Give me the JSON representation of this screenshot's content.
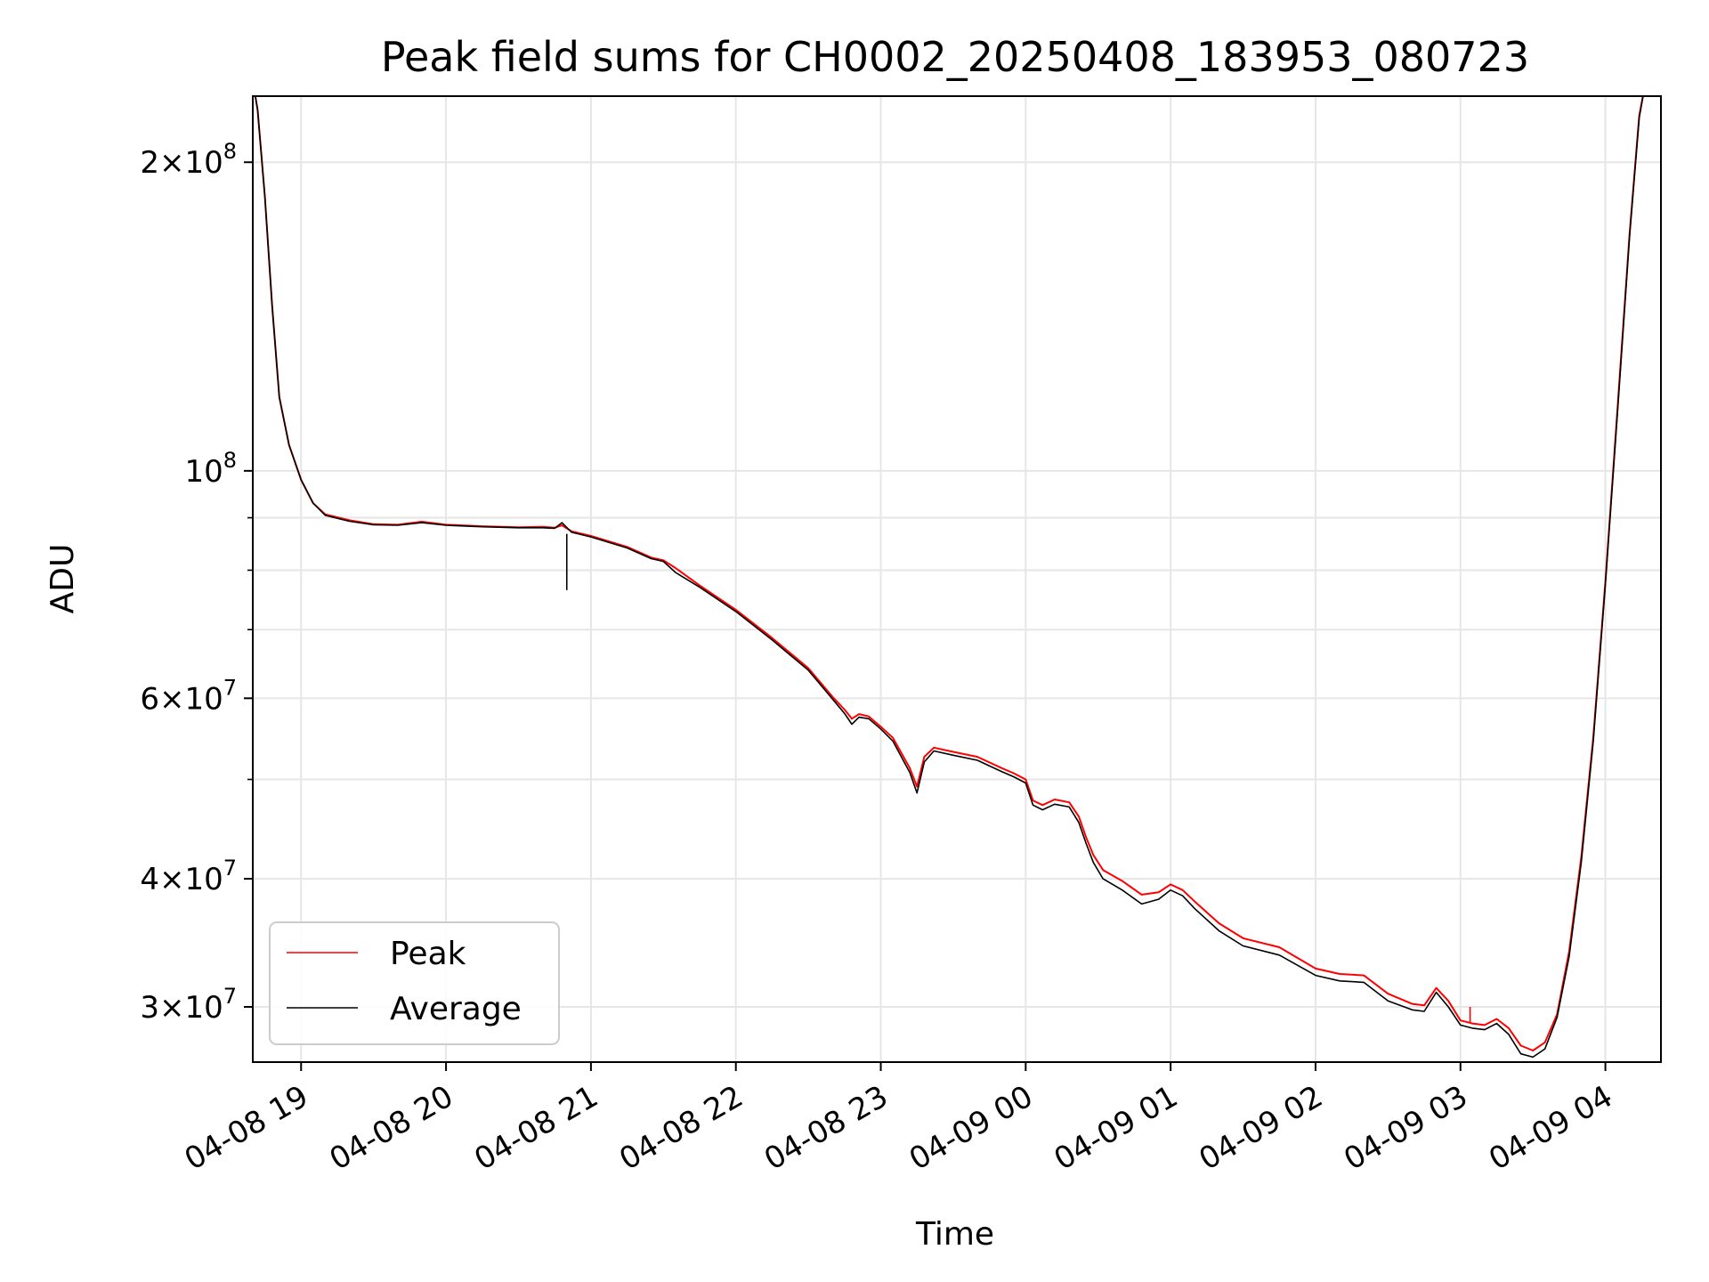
{
  "chart_data": {
    "type": "line",
    "title": "Peak field sums for CH0002_20250408_183953_080723",
    "xlabel": "Time",
    "ylabel": "ADU",
    "y_scale": "log",
    "grid": true,
    "legend_placement": "lower-left",
    "xlim": [
      "2025-04-08 18:40",
      "2025-04-09 04:23"
    ],
    "ylim": [
      26500000,
      232000000
    ],
    "x_ticks": [
      {
        "value": "2025-04-08 19:00",
        "label": "04-08 19"
      },
      {
        "value": "2025-04-08 20:00",
        "label": "04-08 20"
      },
      {
        "value": "2025-04-08 21:00",
        "label": "04-08 21"
      },
      {
        "value": "2025-04-08 22:00",
        "label": "04-08 22"
      },
      {
        "value": "2025-04-08 23:00",
        "label": "04-08 23"
      },
      {
        "value": "2025-04-09 00:00",
        "label": "04-09 00"
      },
      {
        "value": "2025-04-09 01:00",
        "label": "04-09 01"
      },
      {
        "value": "2025-04-09 02:00",
        "label": "04-09 02"
      },
      {
        "value": "2025-04-09 03:00",
        "label": "04-09 03"
      },
      {
        "value": "2025-04-09 04:00",
        "label": "04-09 04"
      }
    ],
    "y_major_ticks": [
      {
        "value": 30000000,
        "mant": "3",
        "exp": "7"
      },
      {
        "value": 40000000,
        "mant": "4",
        "exp": "7"
      },
      {
        "value": 60000000,
        "mant": "6",
        "exp": "7"
      },
      {
        "value": 100000000,
        "mant": "",
        "exp": "8"
      },
      {
        "value": 200000000,
        "mant": "2",
        "exp": "8"
      }
    ],
    "y_minor_ticks": [
      50000000,
      70000000,
      80000000,
      90000000
    ],
    "colors": {
      "peak": "#ff0000",
      "average": "#000000",
      "grid": "#e6e6e6"
    },
    "series": [
      {
        "name": "Peak",
        "color": "#ff0000",
        "spikes": [
          {
            "x": "2025-04-09 03:04",
            "y_base": 28900000,
            "y_top": 30000000
          }
        ],
        "points": [
          [
            "2025-04-08 18:40",
            240000000
          ],
          [
            "2025-04-08 18:42",
            225000000
          ],
          [
            "2025-04-08 18:45",
            185000000
          ],
          [
            "2025-04-08 18:48",
            145000000
          ],
          [
            "2025-04-08 18:51",
            118000000
          ],
          [
            "2025-04-08 18:55",
            106000000
          ],
          [
            "2025-04-08 19:00",
            98000000
          ],
          [
            "2025-04-08 19:05",
            93000000
          ],
          [
            "2025-04-08 19:10",
            90700000
          ],
          [
            "2025-04-08 19:20",
            89500000
          ],
          [
            "2025-04-08 19:30",
            88700000
          ],
          [
            "2025-04-08 19:40",
            88600000
          ],
          [
            "2025-04-08 19:50",
            89200000
          ],
          [
            "2025-04-08 20:00",
            88600000
          ],
          [
            "2025-04-08 20:15",
            88300000
          ],
          [
            "2025-04-08 20:30",
            88100000
          ],
          [
            "2025-04-08 20:40",
            88200000
          ],
          [
            "2025-04-08 20:45",
            88000000
          ],
          [
            "2025-04-08 20:48",
            88500000
          ],
          [
            "2025-04-08 20:52",
            87300000
          ],
          [
            "2025-04-08 21:00",
            86400000
          ],
          [
            "2025-04-08 21:15",
            84300000
          ],
          [
            "2025-04-08 21:25",
            82300000
          ],
          [
            "2025-04-08 21:30",
            81800000
          ],
          [
            "2025-04-08 21:35",
            80400000
          ],
          [
            "2025-04-08 21:45",
            77300000
          ],
          [
            "2025-04-08 22:00",
            73200000
          ],
          [
            "2025-04-08 22:15",
            68700000
          ],
          [
            "2025-04-08 22:30",
            64200000
          ],
          [
            "2025-04-08 22:40",
            60200000
          ],
          [
            "2025-04-08 22:45",
            58500000
          ],
          [
            "2025-04-08 22:48",
            57300000
          ],
          [
            "2025-04-08 22:51",
            57900000
          ],
          [
            "2025-04-08 22:55",
            57600000
          ],
          [
            "2025-04-08 23:00",
            56300000
          ],
          [
            "2025-04-08 23:05",
            54900000
          ],
          [
            "2025-04-08 23:12",
            51300000
          ],
          [
            "2025-04-08 23:15",
            49200000
          ],
          [
            "2025-04-08 23:18",
            52600000
          ],
          [
            "2025-04-08 23:22",
            53700000
          ],
          [
            "2025-04-08 23:30",
            53200000
          ],
          [
            "2025-04-08 23:40",
            52600000
          ],
          [
            "2025-04-08 23:50",
            51300000
          ],
          [
            "2025-04-08 23:55",
            50700000
          ],
          [
            "2025-04-09 00:00",
            50000000
          ],
          [
            "2025-04-09 00:03",
            47700000
          ],
          [
            "2025-04-09 00:07",
            47200000
          ],
          [
            "2025-04-09 00:12",
            47800000
          ],
          [
            "2025-04-09 00:18",
            47500000
          ],
          [
            "2025-04-09 00:22",
            46000000
          ],
          [
            "2025-04-09 00:25",
            43900000
          ],
          [
            "2025-04-09 00:28",
            42200000
          ],
          [
            "2025-04-09 00:32",
            40800000
          ],
          [
            "2025-04-09 00:40",
            39800000
          ],
          [
            "2025-04-09 00:48",
            38600000
          ],
          [
            "2025-04-09 00:55",
            38800000
          ],
          [
            "2025-04-09 01:00",
            39500000
          ],
          [
            "2025-04-09 01:05",
            39000000
          ],
          [
            "2025-04-09 01:10",
            38000000
          ],
          [
            "2025-04-09 01:20",
            36200000
          ],
          [
            "2025-04-09 01:30",
            35000000
          ],
          [
            "2025-04-09 01:45",
            34300000
          ],
          [
            "2025-04-09 02:00",
            32700000
          ],
          [
            "2025-04-09 02:10",
            32300000
          ],
          [
            "2025-04-09 02:20",
            32200000
          ],
          [
            "2025-04-09 02:30",
            30900000
          ],
          [
            "2025-04-09 02:40",
            30200000
          ],
          [
            "2025-04-09 02:45",
            30100000
          ],
          [
            "2025-04-09 02:50",
            31300000
          ],
          [
            "2025-04-09 02:55",
            30400000
          ],
          [
            "2025-04-09 03:00",
            29100000
          ],
          [
            "2025-04-09 03:05",
            28900000
          ],
          [
            "2025-04-09 03:10",
            28800000
          ],
          [
            "2025-04-09 03:15",
            29200000
          ],
          [
            "2025-04-09 03:20",
            28600000
          ],
          [
            "2025-04-09 03:25",
            27500000
          ],
          [
            "2025-04-09 03:30",
            27200000
          ],
          [
            "2025-04-09 03:35",
            27700000
          ],
          [
            "2025-04-09 03:40",
            29500000
          ],
          [
            "2025-04-09 03:45",
            34000000
          ],
          [
            "2025-04-09 03:50",
            42000000
          ],
          [
            "2025-04-09 03:55",
            55000000
          ],
          [
            "2025-04-09 04:00",
            78000000
          ],
          [
            "2025-04-09 04:05",
            115000000
          ],
          [
            "2025-04-09 04:10",
            170000000
          ],
          [
            "2025-04-09 04:14",
            222000000
          ],
          [
            "2025-04-09 04:16",
            235000000
          ]
        ]
      },
      {
        "name": "Average",
        "color": "#000000",
        "spikes": [
          {
            "x": "2025-04-08 20:50",
            "y_base": 86800000,
            "y_top": 76500000
          }
        ],
        "points": [
          [
            "2025-04-08 18:40",
            240000000
          ],
          [
            "2025-04-08 18:42",
            225000000
          ],
          [
            "2025-04-08 18:45",
            185000000
          ],
          [
            "2025-04-08 18:48",
            145000000
          ],
          [
            "2025-04-08 18:51",
            118000000
          ],
          [
            "2025-04-08 18:55",
            106000000
          ],
          [
            "2025-04-08 19:00",
            98000000
          ],
          [
            "2025-04-08 19:05",
            93000000
          ],
          [
            "2025-04-08 19:10",
            90500000
          ],
          [
            "2025-04-08 19:20",
            89300000
          ],
          [
            "2025-04-08 19:30",
            88600000
          ],
          [
            "2025-04-08 19:40",
            88500000
          ],
          [
            "2025-04-08 19:50",
            89000000
          ],
          [
            "2025-04-08 20:00",
            88500000
          ],
          [
            "2025-04-08 20:15",
            88200000
          ],
          [
            "2025-04-08 20:30",
            88000000
          ],
          [
            "2025-04-08 20:40",
            88000000
          ],
          [
            "2025-04-08 20:45",
            87900000
          ],
          [
            "2025-04-08 20:48",
            89000000
          ],
          [
            "2025-04-08 20:52",
            87100000
          ],
          [
            "2025-04-08 21:00",
            86200000
          ],
          [
            "2025-04-08 21:15",
            84100000
          ],
          [
            "2025-04-08 21:25",
            82100000
          ],
          [
            "2025-04-08 21:30",
            81600000
          ],
          [
            "2025-04-08 21:35",
            79600000
          ],
          [
            "2025-04-08 21:45",
            77000000
          ],
          [
            "2025-04-08 22:00",
            72900000
          ],
          [
            "2025-04-08 22:15",
            68400000
          ],
          [
            "2025-04-08 22:30",
            63900000
          ],
          [
            "2025-04-08 22:40",
            59900000
          ],
          [
            "2025-04-08 22:45",
            58000000
          ],
          [
            "2025-04-08 22:48",
            56600000
          ],
          [
            "2025-04-08 22:51",
            57500000
          ],
          [
            "2025-04-08 22:55",
            57300000
          ],
          [
            "2025-04-08 23:00",
            56000000
          ],
          [
            "2025-04-08 23:05",
            54500000
          ],
          [
            "2025-04-08 23:12",
            50800000
          ],
          [
            "2025-04-08 23:15",
            48500000
          ],
          [
            "2025-04-08 23:18",
            52000000
          ],
          [
            "2025-04-08 23:22",
            53300000
          ],
          [
            "2025-04-08 23:30",
            52800000
          ],
          [
            "2025-04-08 23:40",
            52200000
          ],
          [
            "2025-04-08 23:50",
            50900000
          ],
          [
            "2025-04-08 23:55",
            50300000
          ],
          [
            "2025-04-09 00:00",
            49600000
          ],
          [
            "2025-04-09 00:03",
            47200000
          ],
          [
            "2025-04-09 00:07",
            46700000
          ],
          [
            "2025-04-09 00:12",
            47300000
          ],
          [
            "2025-04-09 00:18",
            47000000
          ],
          [
            "2025-04-09 00:22",
            45400000
          ],
          [
            "2025-04-09 00:25",
            43300000
          ],
          [
            "2025-04-09 00:28",
            41500000
          ],
          [
            "2025-04-09 00:32",
            40000000
          ],
          [
            "2025-04-09 00:40",
            39000000
          ],
          [
            "2025-04-09 00:48",
            37800000
          ],
          [
            "2025-04-09 00:55",
            38200000
          ],
          [
            "2025-04-09 01:00",
            39000000
          ],
          [
            "2025-04-09 01:05",
            38500000
          ],
          [
            "2025-04-09 01:10",
            37400000
          ],
          [
            "2025-04-09 01:20",
            35600000
          ],
          [
            "2025-04-09 01:30",
            34400000
          ],
          [
            "2025-04-09 01:45",
            33700000
          ],
          [
            "2025-04-09 02:00",
            32200000
          ],
          [
            "2025-04-09 02:10",
            31800000
          ],
          [
            "2025-04-09 02:20",
            31700000
          ],
          [
            "2025-04-09 02:30",
            30400000
          ],
          [
            "2025-04-09 02:40",
            29800000
          ],
          [
            "2025-04-09 02:45",
            29700000
          ],
          [
            "2025-04-09 02:50",
            31000000
          ],
          [
            "2025-04-09 02:55",
            30000000
          ],
          [
            "2025-04-09 03:00",
            28800000
          ],
          [
            "2025-04-09 03:05",
            28600000
          ],
          [
            "2025-04-09 03:10",
            28500000
          ],
          [
            "2025-04-09 03:15",
            28900000
          ],
          [
            "2025-04-09 03:20",
            28200000
          ],
          [
            "2025-04-09 03:25",
            27000000
          ],
          [
            "2025-04-09 03:30",
            26800000
          ],
          [
            "2025-04-09 03:35",
            27300000
          ],
          [
            "2025-04-09 03:40",
            29300000
          ],
          [
            "2025-04-09 03:45",
            33600000
          ],
          [
            "2025-04-09 03:50",
            41500000
          ],
          [
            "2025-04-09 03:55",
            54500000
          ],
          [
            "2025-04-09 04:00",
            77500000
          ],
          [
            "2025-04-09 04:05",
            114000000
          ],
          [
            "2025-04-09 04:10",
            169000000
          ],
          [
            "2025-04-09 04:14",
            221000000
          ],
          [
            "2025-04-09 04:16",
            235000000
          ]
        ]
      }
    ]
  }
}
